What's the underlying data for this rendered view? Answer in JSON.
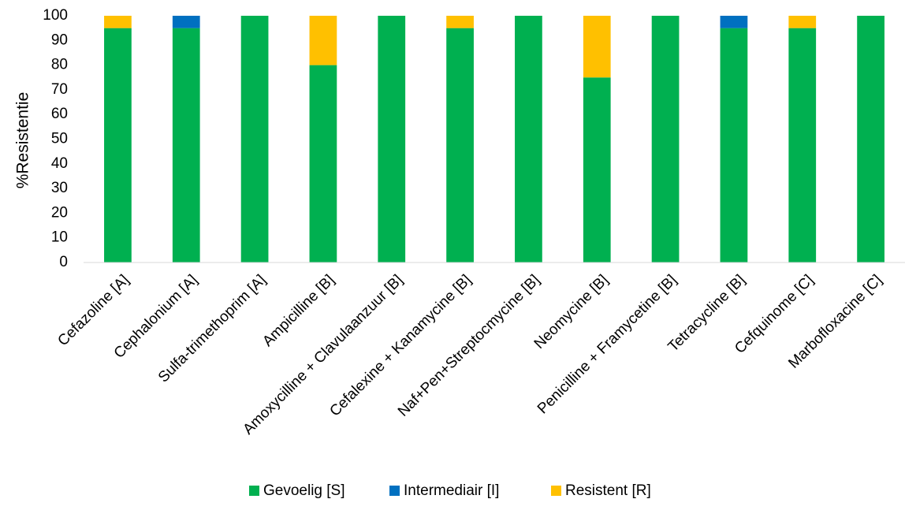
{
  "chart_data": {
    "type": "bar",
    "stacked": true,
    "ylabel": "%Resistentie",
    "ylim": [
      0,
      100
    ],
    "yticks": [
      0,
      10,
      20,
      30,
      40,
      50,
      60,
      70,
      80,
      90,
      100
    ],
    "grid": false,
    "legend_position": "bottom",
    "categories": [
      "Cefazoline [A]",
      "Cephalonium [A]",
      "Sulfa-trimethoprim [A]",
      "Ampicilline [B]",
      "Amoxycilline + Clavulaanzuur [B]",
      "Cefalexine + Kanamycine [B]",
      "Naf+Pen+Streptocmycine [B]",
      "Neomycine [B]",
      "Penicilline + Framycetine [B]",
      "Tetracycline [B]",
      "Cefquinome [C]",
      "Marbofloxacine [C]"
    ],
    "series": [
      {
        "name": "Gevoelig [S]",
        "color": "#00B050",
        "values": [
          95,
          95,
          100,
          80,
          100,
          95,
          100,
          75,
          100,
          95,
          95,
          100
        ]
      },
      {
        "name": "Intermediair [I]",
        "color": "#0070C0",
        "values": [
          0,
          5,
          0,
          0,
          0,
          0,
          0,
          0,
          0,
          5,
          0,
          0
        ]
      },
      {
        "name": "Resistent [R]",
        "color": "#FFC000",
        "values": [
          5,
          0,
          0,
          20,
          0,
          5,
          0,
          25,
          0,
          0,
          5,
          0
        ]
      }
    ]
  }
}
